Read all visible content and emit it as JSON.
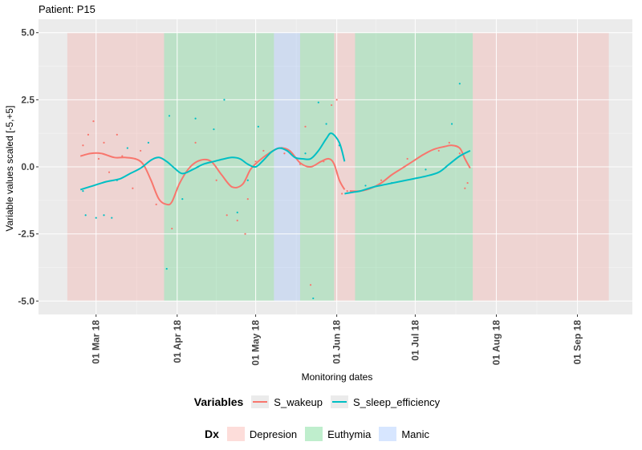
{
  "title": "Patient: P15",
  "chart_data": {
    "type": "line",
    "title": "Patient: P15",
    "xlabel": "Monitoring dates",
    "ylabel": "Variable values scaled [-5,+5]",
    "xlim": [
      "2018-02-07",
      "2018-09-22"
    ],
    "ylim": [
      -5.5,
      5.5
    ],
    "yticks": [
      -5.0,
      -2.5,
      0.0,
      2.5,
      5.0
    ],
    "ytick_labels": [
      "-5.0",
      "-2.5",
      "0.0",
      "2.5",
      "5.0"
    ],
    "xticks": [
      "2018-03-01",
      "2018-04-01",
      "2018-05-01",
      "2018-06-01",
      "2018-07-01",
      "2018-08-01",
      "2018-09-01"
    ],
    "xtick_labels": [
      "01 Mar 18",
      "01 Apr 18",
      "01 May 18",
      "01 Jun 18",
      "01 Jul 18",
      "01 Aug 18",
      "01 Sep 18"
    ],
    "grid": true,
    "legend_position": "bottom",
    "dx_periods": [
      {
        "dx": "Depression",
        "start": "2018-02-18",
        "end": "2018-03-27"
      },
      {
        "dx": "Euthymia",
        "start": "2018-03-27",
        "end": "2018-05-08"
      },
      {
        "dx": "Manic",
        "start": "2018-05-08",
        "end": "2018-05-18"
      },
      {
        "dx": "Euthymia",
        "start": "2018-05-18",
        "end": "2018-05-31"
      },
      {
        "dx": "Depression",
        "start": "2018-05-31",
        "end": "2018-06-08"
      },
      {
        "dx": "Euthymia",
        "start": "2018-06-08",
        "end": "2018-07-23"
      },
      {
        "dx": "Depression",
        "start": "2018-07-23",
        "end": "2018-09-13"
      }
    ],
    "series": [
      {
        "name": "S_wakeup",
        "color": "#F8766D",
        "segments": [
          {
            "x": [
              "2018-02-23",
              "2018-02-27",
              "2018-03-03",
              "2018-03-08",
              "2018-03-12",
              "2018-03-16",
              "2018-03-19",
              "2018-03-22",
              "2018-03-25",
              "2018-03-28",
              "2018-03-30",
              "2018-04-02",
              "2018-04-06",
              "2018-04-10",
              "2018-04-14",
              "2018-04-18",
              "2018-04-22",
              "2018-04-26",
              "2018-04-29",
              "2018-05-02",
              "2018-05-06",
              "2018-05-10",
              "2018-05-14",
              "2018-05-18",
              "2018-05-22",
              "2018-05-26",
              "2018-05-29",
              "2018-05-31",
              "2018-06-02",
              "2018-06-04"
            ],
            "y": [
              0.4,
              0.5,
              0.5,
              0.35,
              0.35,
              0.3,
              0.1,
              -0.5,
              -1.2,
              -1.4,
              -1.3,
              -0.6,
              0.0,
              0.25,
              0.2,
              -0.3,
              -0.75,
              -0.65,
              -0.1,
              0.2,
              0.5,
              0.7,
              0.6,
              0.15,
              0.0,
              0.2,
              0.3,
              0.1,
              -0.5,
              -0.85
            ]
          },
          {
            "x": [
              "2018-06-06",
              "2018-06-10",
              "2018-06-14",
              "2018-06-18",
              "2018-06-22",
              "2018-06-26",
              "2018-06-30",
              "2018-07-04",
              "2018-07-08",
              "2018-07-12",
              "2018-07-15",
              "2018-07-18",
              "2018-07-20",
              "2018-07-22"
            ],
            "y": [
              -0.9,
              -0.9,
              -0.8,
              -0.6,
              -0.3,
              -0.05,
              0.2,
              0.45,
              0.65,
              0.75,
              0.8,
              0.7,
              0.3,
              -0.05
            ]
          }
        ],
        "points": [
          {
            "x": "2018-02-24",
            "y": 0.8
          },
          {
            "x": "2018-02-26",
            "y": 1.2
          },
          {
            "x": "2018-02-28",
            "y": 1.7
          },
          {
            "x": "2018-03-02",
            "y": 0.3
          },
          {
            "x": "2018-03-04",
            "y": 0.9
          },
          {
            "x": "2018-03-06",
            "y": -0.2
          },
          {
            "x": "2018-03-09",
            "y": 1.2
          },
          {
            "x": "2018-03-11",
            "y": 0.4
          },
          {
            "x": "2018-03-15",
            "y": -0.8
          },
          {
            "x": "2018-03-18",
            "y": 0.6
          },
          {
            "x": "2018-03-24",
            "y": -1.4
          },
          {
            "x": "2018-03-30",
            "y": -2.3
          },
          {
            "x": "2018-04-08",
            "y": 0.9
          },
          {
            "x": "2018-04-16",
            "y": -0.5
          },
          {
            "x": "2018-04-20",
            "y": -1.8
          },
          {
            "x": "2018-04-24",
            "y": -2.0
          },
          {
            "x": "2018-04-27",
            "y": -2.5
          },
          {
            "x": "2018-04-28",
            "y": -1.2
          },
          {
            "x": "2018-05-01",
            "y": 0.2
          },
          {
            "x": "2018-05-04",
            "y": 0.6
          },
          {
            "x": "2018-05-12",
            "y": 0.5
          },
          {
            "x": "2018-05-18",
            "y": 0.1
          },
          {
            "x": "2018-05-20",
            "y": 1.5
          },
          {
            "x": "2018-05-22",
            "y": -4.4
          },
          {
            "x": "2018-05-27",
            "y": 0.2
          },
          {
            "x": "2018-05-30",
            "y": 2.3
          },
          {
            "x": "2018-06-01",
            "y": 2.5
          },
          {
            "x": "2018-06-03",
            "y": -1.0
          },
          {
            "x": "2018-06-05",
            "y": -0.9
          },
          {
            "x": "2018-06-18",
            "y": -0.5
          },
          {
            "x": "2018-06-28",
            "y": 0.3
          },
          {
            "x": "2018-07-10",
            "y": 0.6
          },
          {
            "x": "2018-07-14",
            "y": 0.9
          },
          {
            "x": "2018-07-18",
            "y": 0.5
          },
          {
            "x": "2018-07-20",
            "y": -0.8
          },
          {
            "x": "2018-07-21",
            "y": -0.6
          }
        ]
      },
      {
        "name": "S_sleep_efficiency",
        "color": "#00BFC4",
        "segments": [
          {
            "x": [
              "2018-02-23",
              "2018-02-28",
              "2018-03-05",
              "2018-03-10",
              "2018-03-14",
              "2018-03-18",
              "2018-03-22",
              "2018-03-25",
              "2018-03-28",
              "2018-03-31",
              "2018-04-03",
              "2018-04-07",
              "2018-04-11",
              "2018-04-15",
              "2018-04-19",
              "2018-04-22",
              "2018-04-25",
              "2018-04-28",
              "2018-05-01",
              "2018-05-04",
              "2018-05-07",
              "2018-05-10",
              "2018-05-13",
              "2018-05-16",
              "2018-05-19",
              "2018-05-22",
              "2018-05-25",
              "2018-05-28",
              "2018-05-30",
              "2018-06-02",
              "2018-06-04"
            ],
            "y": [
              -0.85,
              -0.7,
              -0.55,
              -0.45,
              -0.25,
              -0.05,
              0.25,
              0.35,
              0.2,
              -0.05,
              -0.25,
              -0.1,
              0.1,
              0.2,
              0.3,
              0.35,
              0.3,
              0.1,
              0.0,
              0.25,
              0.55,
              0.7,
              0.6,
              0.35,
              0.3,
              0.3,
              0.6,
              1.05,
              1.25,
              0.9,
              0.2
            ]
          },
          {
            "x": [
              "2018-06-04",
              "2018-06-07",
              "2018-06-10",
              "2018-06-15",
              "2018-06-20",
              "2018-06-25",
              "2018-06-30",
              "2018-07-05",
              "2018-07-10",
              "2018-07-14",
              "2018-07-18",
              "2018-07-22"
            ],
            "y": [
              -1.0,
              -0.95,
              -0.9,
              -0.75,
              -0.65,
              -0.55,
              -0.45,
              -0.35,
              -0.2,
              0.1,
              0.4,
              0.6
            ]
          }
        ],
        "points": [
          {
            "x": "2018-02-24",
            "y": -0.9
          },
          {
            "x": "2018-02-25",
            "y": -1.8
          },
          {
            "x": "2018-03-01",
            "y": -1.9
          },
          {
            "x": "2018-03-04",
            "y": -1.8
          },
          {
            "x": "2018-03-07",
            "y": -1.9
          },
          {
            "x": "2018-03-09",
            "y": -0.5
          },
          {
            "x": "2018-03-13",
            "y": 0.7
          },
          {
            "x": "2018-03-21",
            "y": 0.9
          },
          {
            "x": "2018-03-28",
            "y": -3.8
          },
          {
            "x": "2018-03-29",
            "y": 1.9
          },
          {
            "x": "2018-04-03",
            "y": -1.2
          },
          {
            "x": "2018-04-08",
            "y": 1.8
          },
          {
            "x": "2018-04-15",
            "y": 1.4
          },
          {
            "x": "2018-04-19",
            "y": 2.5
          },
          {
            "x": "2018-04-24",
            "y": -1.7
          },
          {
            "x": "2018-04-28",
            "y": -0.5
          },
          {
            "x": "2018-05-02",
            "y": 1.5
          },
          {
            "x": "2018-05-11",
            "y": 0.7
          },
          {
            "x": "2018-05-20",
            "y": 0.5
          },
          {
            "x": "2018-05-23",
            "y": -4.9
          },
          {
            "x": "2018-05-25",
            "y": 2.4
          },
          {
            "x": "2018-05-28",
            "y": 1.6
          },
          {
            "x": "2018-06-02",
            "y": 0.8
          },
          {
            "x": "2018-06-12",
            "y": -0.7
          },
          {
            "x": "2018-06-22",
            "y": -0.6
          },
          {
            "x": "2018-07-05",
            "y": -0.1
          },
          {
            "x": "2018-07-15",
            "y": 1.6
          },
          {
            "x": "2018-07-18",
            "y": 3.1
          }
        ]
      }
    ]
  },
  "legends": {
    "variables": {
      "title": "Variables",
      "items": [
        {
          "label": "S_wakeup",
          "color": "#F8766D"
        },
        {
          "label": "S_sleep_efficiency",
          "color": "#00BFC4"
        }
      ]
    },
    "dx": {
      "title": "Dx",
      "items": [
        {
          "label": "Depresion",
          "color": "#F8766D"
        },
        {
          "label": "Euthymia",
          "color": "#00BA38"
        },
        {
          "label": "Manic",
          "color": "#619CFF"
        }
      ]
    }
  }
}
